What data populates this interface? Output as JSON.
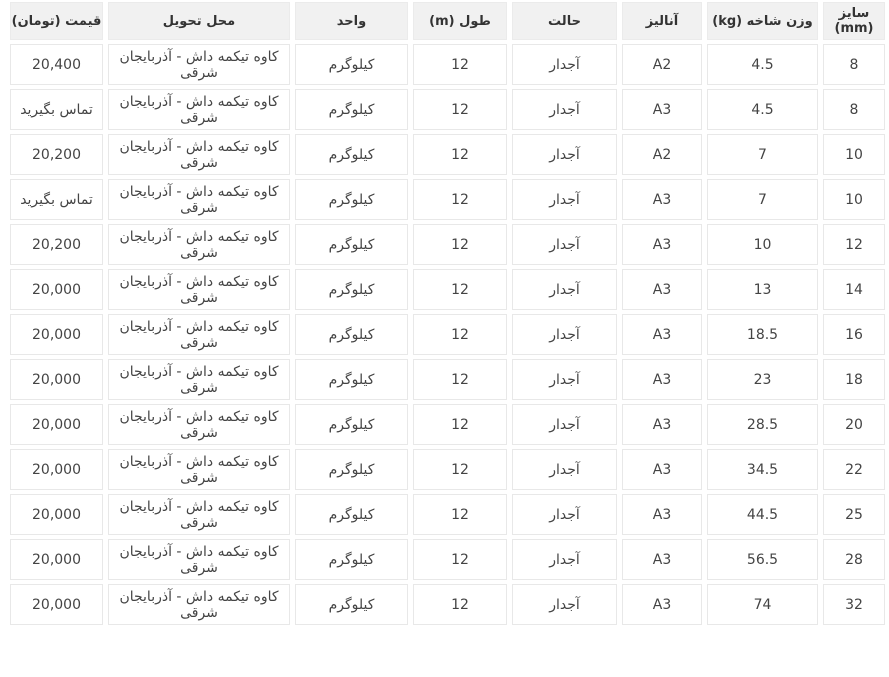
{
  "colors": {
    "price_green": "#0e8c62",
    "header_bg": "#f1f1f1",
    "cell_border": "#e8e8e8",
    "body_text": "#444444"
  },
  "table": {
    "columns": [
      {
        "key": "size",
        "label": "سایز (mm)"
      },
      {
        "key": "weight",
        "label": "وزن شاخه (kg)"
      },
      {
        "key": "analysis",
        "label": "آنالیز"
      },
      {
        "key": "state",
        "label": "حالت"
      },
      {
        "key": "length",
        "label": "طول (m)"
      },
      {
        "key": "unit",
        "label": "واحد"
      },
      {
        "key": "location",
        "label": "محل تحویل"
      },
      {
        "key": "price",
        "label": "قیمت (تومان)"
      }
    ],
    "call_price_label": "تماس بگیرید",
    "rows": [
      {
        "size": "8",
        "weight": "4.5",
        "analysis": "A2",
        "state": "آجدار",
        "length": "12",
        "unit": "کیلوگرم",
        "location": "کاوه تیکمه داش - آذربایجان شرقی",
        "price": "20,400",
        "price_type": "value"
      },
      {
        "size": "8",
        "weight": "4.5",
        "analysis": "A3",
        "state": "آجدار",
        "length": "12",
        "unit": "کیلوگرم",
        "location": "کاوه تیکمه داش - آذربایجان شرقی",
        "price": "تماس بگیرید",
        "price_type": "call"
      },
      {
        "size": "10",
        "weight": "7",
        "analysis": "A2",
        "state": "آجدار",
        "length": "12",
        "unit": "کیلوگرم",
        "location": "کاوه تیکمه داش - آذربایجان شرقی",
        "price": "20,200",
        "price_type": "value"
      },
      {
        "size": "10",
        "weight": "7",
        "analysis": "A3",
        "state": "آجدار",
        "length": "12",
        "unit": "کیلوگرم",
        "location": "کاوه تیکمه داش - آذربایجان شرقی",
        "price": "تماس بگیرید",
        "price_type": "call"
      },
      {
        "size": "12",
        "weight": "10",
        "analysis": "A3",
        "state": "آجدار",
        "length": "12",
        "unit": "کیلوگرم",
        "location": "کاوه تیکمه داش - آذربایجان شرقی",
        "price": "20,200",
        "price_type": "value"
      },
      {
        "size": "14",
        "weight": "13",
        "analysis": "A3",
        "state": "آجدار",
        "length": "12",
        "unit": "کیلوگرم",
        "location": "کاوه تیکمه داش - آذربایجان شرقی",
        "price": "20,000",
        "price_type": "value"
      },
      {
        "size": "16",
        "weight": "18.5",
        "analysis": "A3",
        "state": "آجدار",
        "length": "12",
        "unit": "کیلوگرم",
        "location": "کاوه تیکمه داش - آذربایجان شرقی",
        "price": "20,000",
        "price_type": "value"
      },
      {
        "size": "18",
        "weight": "23",
        "analysis": "A3",
        "state": "آجدار",
        "length": "12",
        "unit": "کیلوگرم",
        "location": "کاوه تیکمه داش - آذربایجان شرقی",
        "price": "20,000",
        "price_type": "value"
      },
      {
        "size": "20",
        "weight": "28.5",
        "analysis": "A3",
        "state": "آجدار",
        "length": "12",
        "unit": "کیلوگرم",
        "location": "کاوه تیکمه داش - آذربایجان شرقی",
        "price": "20,000",
        "price_type": "value"
      },
      {
        "size": "22",
        "weight": "34.5",
        "analysis": "A3",
        "state": "آجدار",
        "length": "12",
        "unit": "کیلوگرم",
        "location": "کاوه تیکمه داش - آذربایجان شرقی",
        "price": "20,000",
        "price_type": "value"
      },
      {
        "size": "25",
        "weight": "44.5",
        "analysis": "A3",
        "state": "آجدار",
        "length": "12",
        "unit": "کیلوگرم",
        "location": "کاوه تیکمه داش - آذربایجان شرقی",
        "price": "20,000",
        "price_type": "value"
      },
      {
        "size": "28",
        "weight": "56.5",
        "analysis": "A3",
        "state": "آجدار",
        "length": "12",
        "unit": "کیلوگرم",
        "location": "کاوه تیکمه داش - آذربایجان شرقی",
        "price": "20,000",
        "price_type": "value"
      },
      {
        "size": "32",
        "weight": "74",
        "analysis": "A3",
        "state": "آجدار",
        "length": "12",
        "unit": "کیلوگرم",
        "location": "کاوه تیکمه داش - آذربایجان شرقی",
        "price": "20,000",
        "price_type": "value"
      }
    ]
  }
}
